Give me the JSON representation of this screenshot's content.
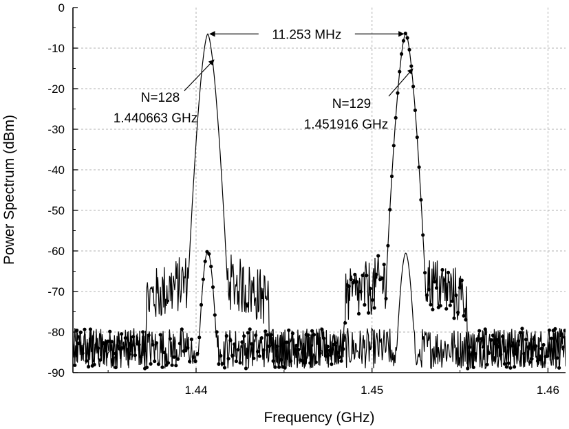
{
  "chart_data": {
    "type": "line",
    "title": "",
    "xlabel": "Frequency (GHz)",
    "ylabel": "Power Spectrum (dBm)",
    "xlim": [
      1.433,
      1.461
    ],
    "ylim": [
      -90,
      0
    ],
    "xticks": [
      1.44,
      1.45,
      1.46
    ],
    "xtick_labels": [
      "1.44",
      "1.45",
      "1.46"
    ],
    "yticks": [
      0,
      -10,
      -20,
      -30,
      -40,
      -50,
      -60,
      -70,
      -80,
      -90
    ],
    "ytick_labels": [
      "0",
      "-10",
      "-20",
      "-30",
      "-40",
      "-50",
      "-60",
      "-70",
      "-80",
      "-90"
    ],
    "grid": true,
    "legend": "none",
    "series": [
      {
        "style": "solid line",
        "peak": {
          "x": 1.440663,
          "y": -6.5
        },
        "secondary_peak": {
          "x": 1.451916,
          "y": -60.5
        },
        "noise_floor": -84
      },
      {
        "style": "line with dots",
        "peak": {
          "x": 1.451916,
          "y": -6.3
        },
        "secondary_peak": {
          "x": 1.440663,
          "y": -60
        },
        "noise_floor": -84
      }
    ],
    "annotations": [
      {
        "lines": [
          "N=128",
          "1.440663 GHz"
        ],
        "target": {
          "x": 1.440663,
          "y": -6.5
        }
      },
      {
        "lines": [
          "N=129",
          "1.451916 GHz"
        ],
        "target": {
          "x": 1.451916,
          "y": -6.3
        }
      },
      {
        "text": "11.253 MHz",
        "from": {
          "x": 1.440663,
          "y": -6.5
        },
        "to": {
          "x": 1.451916,
          "y": -6.5
        }
      }
    ]
  }
}
